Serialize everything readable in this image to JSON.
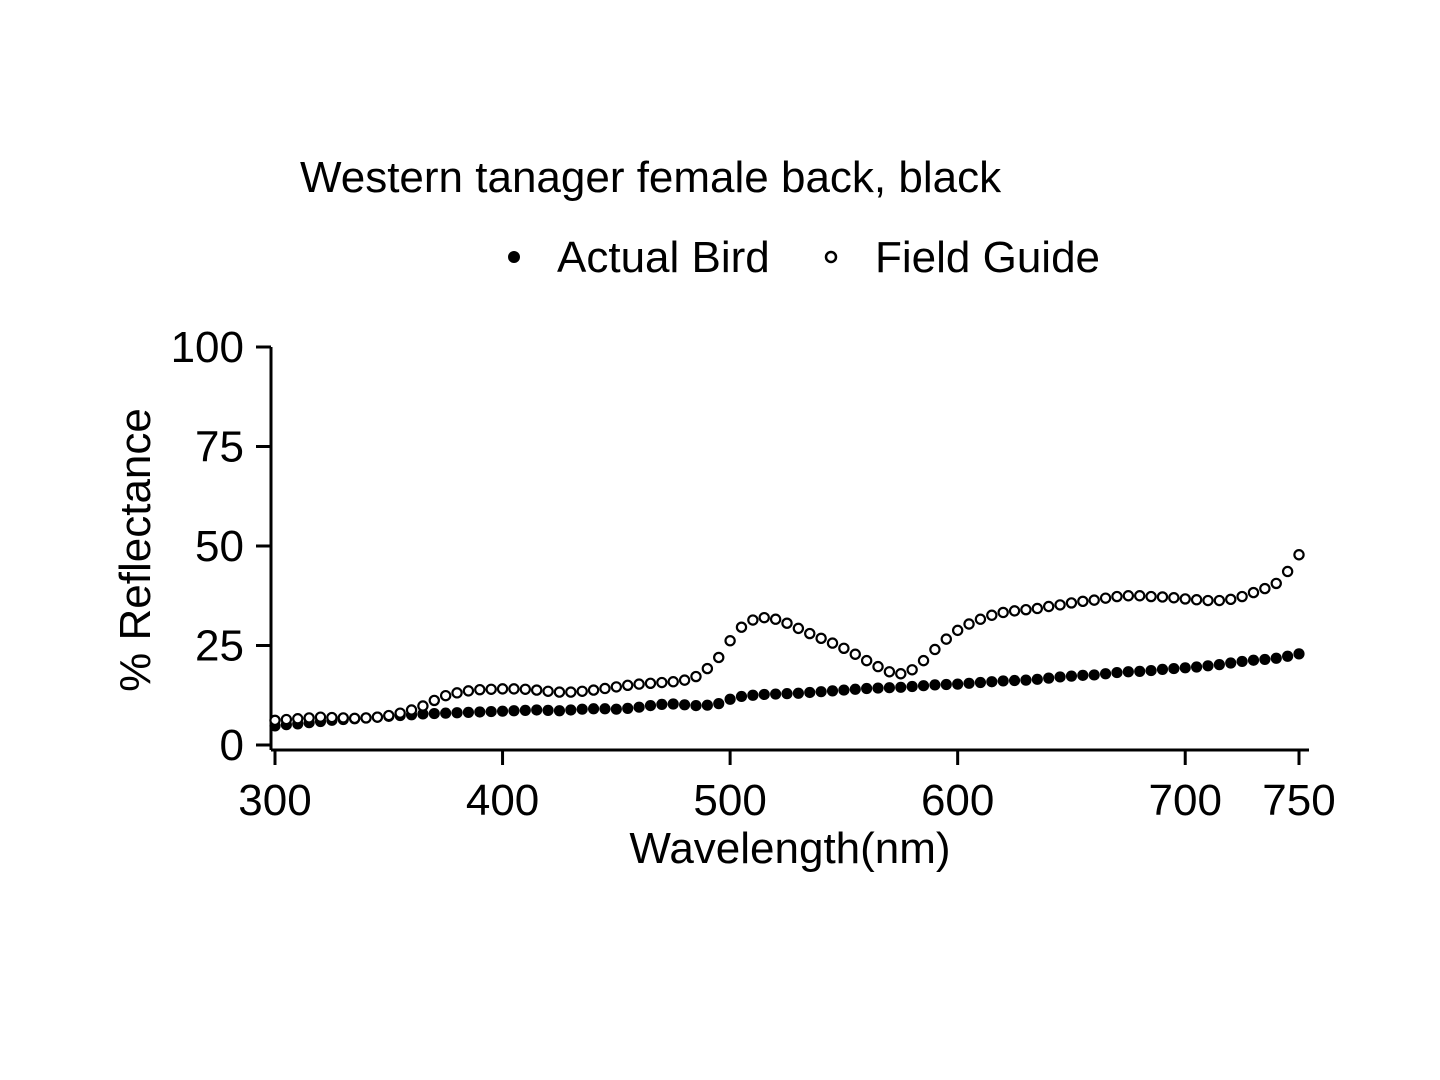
{
  "chart_data": {
    "type": "scatter",
    "title": "Western tanager female back, black",
    "xlabel": "Wavelength(nm)",
    "ylabel": "% Reflectance",
    "xlim": [
      300,
      750
    ],
    "ylim": [
      0,
      100
    ],
    "xticks": [
      300,
      400,
      500,
      600,
      700,
      750
    ],
    "yticks": [
      0,
      25,
      50,
      75,
      100
    ],
    "grid": false,
    "legend_position": "top",
    "marker_color": "#000000",
    "series": [
      {
        "name": "Actual Bird",
        "marker": "filled-circle",
        "x": [
          300,
          305,
          310,
          315,
          320,
          325,
          330,
          335,
          340,
          345,
          350,
          355,
          360,
          365,
          370,
          375,
          380,
          385,
          390,
          395,
          400,
          405,
          410,
          415,
          420,
          425,
          430,
          435,
          440,
          445,
          450,
          455,
          460,
          465,
          470,
          475,
          480,
          485,
          490,
          495,
          500,
          505,
          510,
          515,
          520,
          525,
          530,
          535,
          540,
          545,
          550,
          555,
          560,
          565,
          570,
          575,
          580,
          585,
          590,
          595,
          600,
          605,
          610,
          615,
          620,
          625,
          630,
          635,
          640,
          645,
          650,
          655,
          660,
          665,
          670,
          675,
          680,
          685,
          690,
          695,
          700,
          705,
          710,
          715,
          720,
          725,
          730,
          735,
          740,
          745,
          750
        ],
        "y": [
          4.8,
          5.1,
          5.3,
          5.6,
          5.9,
          6.2,
          6.4,
          6.6,
          6.8,
          7.0,
          7.2,
          7.4,
          7.6,
          7.8,
          7.9,
          8.0,
          8.1,
          8.2,
          8.3,
          8.4,
          8.5,
          8.6,
          8.7,
          8.8,
          8.7,
          8.6,
          8.8,
          9.0,
          9.1,
          9.1,
          9.0,
          9.2,
          9.5,
          9.9,
          10.2,
          10.3,
          10.1,
          9.9,
          10.0,
          10.4,
          11.5,
          12.2,
          12.5,
          12.7,
          12.8,
          12.9,
          13.0,
          13.2,
          13.4,
          13.6,
          13.8,
          14.0,
          14.2,
          14.3,
          14.4,
          14.5,
          14.7,
          14.9,
          15.1,
          15.2,
          15.3,
          15.5,
          15.7,
          15.9,
          16.1,
          16.2,
          16.3,
          16.5,
          16.8,
          17.1,
          17.3,
          17.5,
          17.6,
          17.9,
          18.2,
          18.4,
          18.5,
          18.7,
          19.0,
          19.2,
          19.4,
          19.6,
          19.9,
          20.2,
          20.6,
          21.0,
          21.3,
          21.5,
          21.8,
          22.3,
          22.9
        ]
      },
      {
        "name": "Field Guide",
        "marker": "open-circle",
        "x": [
          300,
          305,
          310,
          315,
          320,
          325,
          330,
          335,
          340,
          345,
          350,
          355,
          360,
          365,
          370,
          375,
          380,
          385,
          390,
          395,
          400,
          405,
          410,
          415,
          420,
          425,
          430,
          435,
          440,
          445,
          450,
          455,
          460,
          465,
          470,
          475,
          480,
          485,
          490,
          495,
          500,
          505,
          510,
          515,
          520,
          525,
          530,
          535,
          540,
          545,
          550,
          555,
          560,
          565,
          570,
          575,
          580,
          585,
          590,
          595,
          600,
          605,
          610,
          615,
          620,
          625,
          630,
          635,
          640,
          645,
          650,
          655,
          660,
          665,
          670,
          675,
          680,
          685,
          690,
          695,
          700,
          705,
          710,
          715,
          720,
          725,
          730,
          735,
          740,
          745,
          750
        ],
        "y": [
          6.2,
          6.4,
          6.6,
          6.8,
          7.0,
          6.9,
          6.8,
          6.7,
          6.8,
          7.0,
          7.4,
          8.0,
          8.8,
          9.8,
          11.2,
          12.4,
          13.1,
          13.6,
          13.9,
          14.0,
          14.1,
          14.1,
          14.0,
          13.8,
          13.5,
          13.3,
          13.3,
          13.5,
          13.8,
          14.2,
          14.6,
          15.0,
          15.3,
          15.5,
          15.7,
          15.9,
          16.3,
          17.2,
          19.2,
          22.0,
          26.2,
          29.6,
          31.4,
          32.0,
          31.6,
          30.6,
          29.3,
          28.0,
          26.8,
          25.6,
          24.3,
          22.8,
          21.2,
          19.7,
          18.4,
          17.9,
          18.9,
          21.2,
          24.0,
          26.6,
          28.8,
          30.4,
          31.6,
          32.6,
          33.3,
          33.7,
          34.0,
          34.3,
          34.8,
          35.2,
          35.7,
          36.1,
          36.4,
          36.9,
          37.3,
          37.5,
          37.5,
          37.3,
          37.2,
          37.0,
          36.7,
          36.5,
          36.3,
          36.3,
          36.6,
          37.3,
          38.3,
          39.3,
          40.6,
          43.6,
          47.8
        ]
      }
    ]
  }
}
